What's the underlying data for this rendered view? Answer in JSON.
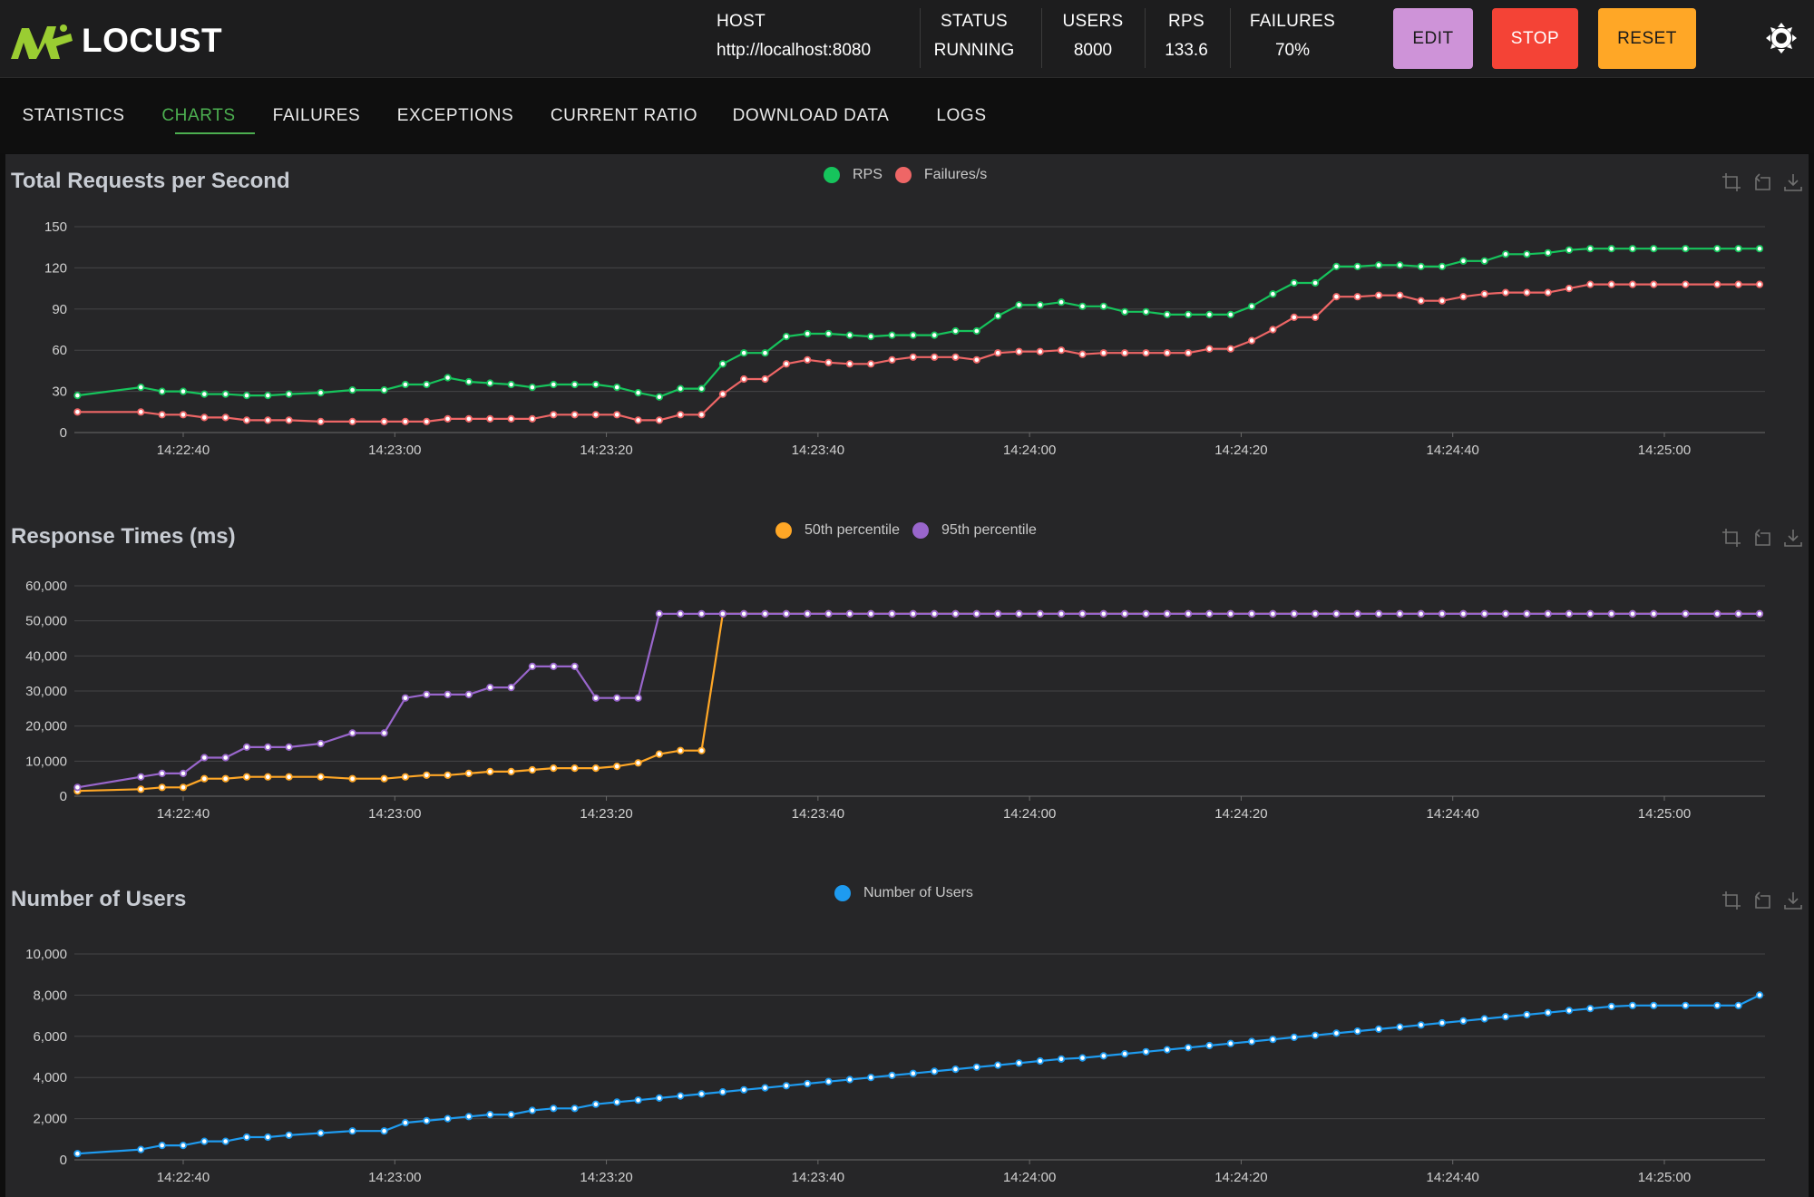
{
  "app": {
    "name": "LOCUST"
  },
  "header": {
    "stats": [
      {
        "label": "HOST",
        "value": "http://localhost:8080"
      },
      {
        "label": "STATUS",
        "value": "RUNNING"
      },
      {
        "label": "USERS",
        "value": "8000"
      },
      {
        "label": "RPS",
        "value": "133.6"
      },
      {
        "label": "FAILURES",
        "value": "70%"
      }
    ],
    "buttons": {
      "edit": "EDIT",
      "stop": "STOP",
      "reset": "RESET"
    },
    "colors": {
      "edit": "#ce93d8",
      "stop": "#f44336",
      "reset": "#ffa726"
    },
    "icons": {
      "logo": "locust-icon",
      "theme": "sun-icon"
    }
  },
  "tabs": [
    {
      "label": "STATISTICS",
      "active": false
    },
    {
      "label": "CHARTS",
      "active": true
    },
    {
      "label": "FAILURES",
      "active": false
    },
    {
      "label": "EXCEPTIONS",
      "active": false
    },
    {
      "label": "CURRENT RATIO",
      "active": false
    },
    {
      "label": "DOWNLOAD DATA",
      "active": false
    },
    {
      "label": "LOGS",
      "active": false
    }
  ],
  "toolbox_icons": [
    "zoom-icon",
    "zoom-reset-icon",
    "save-image-icon"
  ],
  "chart_data": [
    {
      "type": "line",
      "title": "Total Requests per Second",
      "legend_placement": "top-center",
      "grid": true,
      "x_ticks": [
        "14:22:40",
        "14:23:00",
        "14:23:20",
        "14:23:40",
        "14:24:00",
        "14:24:20",
        "14:24:40",
        "14:25:00"
      ],
      "x": [
        "14:22:30",
        "14:22:36",
        "14:22:38",
        "14:22:40",
        "14:22:42",
        "14:22:44",
        "14:22:46",
        "14:22:48",
        "14:22:50",
        "14:22:53",
        "14:22:56",
        "14:22:59",
        "14:23:01",
        "14:23:03",
        "14:23:05",
        "14:23:07",
        "14:23:09",
        "14:23:11",
        "14:23:13",
        "14:23:15",
        "14:23:17",
        "14:23:19",
        "14:23:21",
        "14:23:23",
        "14:23:25",
        "14:23:27",
        "14:23:29",
        "14:23:31",
        "14:23:33",
        "14:23:35",
        "14:23:37",
        "14:23:39",
        "14:23:41",
        "14:23:43",
        "14:23:45",
        "14:23:47",
        "14:23:49",
        "14:23:51",
        "14:23:53",
        "14:23:55",
        "14:23:57",
        "14:23:59",
        "14:24:01",
        "14:24:03",
        "14:24:05",
        "14:24:07",
        "14:24:09",
        "14:24:11",
        "14:24:13",
        "14:24:15",
        "14:24:17",
        "14:24:19",
        "14:24:21",
        "14:24:23",
        "14:24:25",
        "14:24:27",
        "14:24:29",
        "14:24:31",
        "14:24:33",
        "14:24:35",
        "14:24:37",
        "14:24:39",
        "14:24:41",
        "14:24:43",
        "14:24:45",
        "14:24:47",
        "14:24:49",
        "14:24:51",
        "14:24:53",
        "14:24:55",
        "14:24:57",
        "14:24:59",
        "14:25:02",
        "14:25:05",
        "14:25:07",
        "14:25:09"
      ],
      "series": [
        {
          "name": "RPS",
          "color": "#16c45c",
          "values": [
            27,
            33,
            30,
            30,
            28,
            28,
            27,
            27,
            28,
            29,
            31,
            31,
            35,
            35,
            40,
            37,
            36,
            35,
            33,
            35,
            35,
            35,
            33,
            29,
            26,
            32,
            32,
            50,
            58,
            58,
            70,
            72,
            72,
            71,
            70,
            71,
            71,
            71,
            74,
            74,
            85,
            93,
            93,
            95,
            92,
            92,
            88,
            88,
            86,
            86,
            86,
            86,
            92,
            101,
            109,
            109,
            121,
            121,
            122,
            122,
            121,
            121,
            125,
            125,
            130,
            130,
            131,
            133,
            134,
            134,
            134,
            134,
            134,
            134,
            134,
            134
          ]
        },
        {
          "name": "Failures/s",
          "color": "#ee6666",
          "values": [
            15,
            15,
            13,
            13,
            11,
            11,
            9,
            9,
            9,
            8,
            8,
            8,
            8,
            8,
            10,
            10,
            10,
            10,
            10,
            13,
            13,
            13,
            13,
            9,
            9,
            13,
            13,
            28,
            39,
            39,
            50,
            53,
            51,
            50,
            50,
            53,
            55,
            55,
            55,
            53,
            58,
            59,
            59,
            60,
            57,
            58,
            58,
            58,
            58,
            58,
            61,
            61,
            67,
            75,
            84,
            84,
            99,
            99,
            100,
            100,
            96,
            96,
            99,
            101,
            102,
            102,
            102,
            105,
            108,
            108,
            108,
            108,
            108,
            108,
            108,
            108
          ]
        }
      ],
      "ylim": [
        0,
        150
      ],
      "y_ticks": [
        "0",
        "30",
        "60",
        "90",
        "120",
        "150"
      ]
    },
    {
      "type": "line",
      "title": "Response Times (ms)",
      "legend_placement": "top-center",
      "grid": true,
      "x_ticks": [
        "14:22:40",
        "14:23:00",
        "14:23:20",
        "14:23:40",
        "14:24:00",
        "14:24:20",
        "14:24:40",
        "14:25:00"
      ],
      "x": [
        "14:22:30",
        "14:22:36",
        "14:22:38",
        "14:22:40",
        "14:22:42",
        "14:22:44",
        "14:22:46",
        "14:22:48",
        "14:22:50",
        "14:22:53",
        "14:22:56",
        "14:22:59",
        "14:23:01",
        "14:23:03",
        "14:23:05",
        "14:23:07",
        "14:23:09",
        "14:23:11",
        "14:23:13",
        "14:23:15",
        "14:23:17",
        "14:23:19",
        "14:23:21",
        "14:23:23",
        "14:23:25",
        "14:23:27",
        "14:23:29",
        "14:23:31",
        "14:23:33",
        "14:23:35",
        "14:23:37",
        "14:23:39",
        "14:23:41",
        "14:23:43",
        "14:23:45",
        "14:23:47",
        "14:23:49",
        "14:23:51",
        "14:23:53",
        "14:23:55",
        "14:23:57",
        "14:23:59",
        "14:24:01",
        "14:24:03",
        "14:24:05",
        "14:24:07",
        "14:24:09",
        "14:24:11",
        "14:24:13",
        "14:24:15",
        "14:24:17",
        "14:24:19",
        "14:24:21",
        "14:24:23",
        "14:24:25",
        "14:24:27",
        "14:24:29",
        "14:24:31",
        "14:24:33",
        "14:24:35",
        "14:24:37",
        "14:24:39",
        "14:24:41",
        "14:24:43",
        "14:24:45",
        "14:24:47",
        "14:24:49",
        "14:24:51",
        "14:24:53",
        "14:24:55",
        "14:24:57",
        "14:24:59",
        "14:25:02",
        "14:25:05",
        "14:25:07",
        "14:25:09"
      ],
      "series": [
        {
          "name": "50th percentile",
          "color": "#ffa726",
          "values": [
            1500,
            2000,
            2500,
            2500,
            5000,
            5000,
            5500,
            5500,
            5500,
            5500,
            5000,
            5000,
            5500,
            6000,
            6000,
            6500,
            7000,
            7000,
            7500,
            8000,
            8000,
            8000,
            8500,
            9500,
            12000,
            13000,
            13000,
            52000,
            52000,
            52000,
            52000,
            52000,
            52000,
            52000,
            52000,
            52000,
            52000,
            52000,
            52000,
            52000,
            52000,
            52000,
            52000,
            52000,
            52000,
            52000,
            52000,
            52000,
            52000,
            52000,
            52000,
            52000,
            52000,
            52000,
            52000,
            52000,
            52000,
            52000,
            52000,
            52000,
            52000,
            52000,
            52000,
            52000,
            52000,
            52000,
            52000,
            52000,
            52000,
            52000,
            52000,
            52000,
            52000,
            52000,
            52000,
            52000
          ]
        },
        {
          "name": "95th percentile",
          "color": "#9966cc",
          "values": [
            2500,
            5500,
            6500,
            6500,
            11000,
            11000,
            14000,
            14000,
            14000,
            15000,
            18000,
            18000,
            28000,
            29000,
            29000,
            29000,
            31000,
            31000,
            37000,
            37000,
            37000,
            28000,
            28000,
            28000,
            52000,
            52000,
            52000,
            52000,
            52000,
            52000,
            52000,
            52000,
            52000,
            52000,
            52000,
            52000,
            52000,
            52000,
            52000,
            52000,
            52000,
            52000,
            52000,
            52000,
            52000,
            52000,
            52000,
            52000,
            52000,
            52000,
            52000,
            52000,
            52000,
            52000,
            52000,
            52000,
            52000,
            52000,
            52000,
            52000,
            52000,
            52000,
            52000,
            52000,
            52000,
            52000,
            52000,
            52000,
            52000,
            52000,
            52000,
            52000,
            52000,
            52000,
            52000,
            52000
          ]
        }
      ],
      "ylim": [
        0,
        60000
      ],
      "y_ticks": [
        "0",
        "10,000",
        "20,000",
        "30,000",
        "40,000",
        "50,000",
        "60,000"
      ]
    },
    {
      "type": "line",
      "title": "Number of Users",
      "legend_placement": "top-center",
      "grid": true,
      "x_ticks": [
        "14:22:40",
        "14:23:00",
        "14:23:20",
        "14:23:40",
        "14:24:00",
        "14:24:20",
        "14:24:40",
        "14:25:00"
      ],
      "x": [
        "14:22:30",
        "14:22:36",
        "14:22:38",
        "14:22:40",
        "14:22:42",
        "14:22:44",
        "14:22:46",
        "14:22:48",
        "14:22:50",
        "14:22:53",
        "14:22:56",
        "14:22:59",
        "14:23:01",
        "14:23:03",
        "14:23:05",
        "14:23:07",
        "14:23:09",
        "14:23:11",
        "14:23:13",
        "14:23:15",
        "14:23:17",
        "14:23:19",
        "14:23:21",
        "14:23:23",
        "14:23:25",
        "14:23:27",
        "14:23:29",
        "14:23:31",
        "14:23:33",
        "14:23:35",
        "14:23:37",
        "14:23:39",
        "14:23:41",
        "14:23:43",
        "14:23:45",
        "14:23:47",
        "14:23:49",
        "14:23:51",
        "14:23:53",
        "14:23:55",
        "14:23:57",
        "14:23:59",
        "14:24:01",
        "14:24:03",
        "14:24:05",
        "14:24:07",
        "14:24:09",
        "14:24:11",
        "14:24:13",
        "14:24:15",
        "14:24:17",
        "14:24:19",
        "14:24:21",
        "14:24:23",
        "14:24:25",
        "14:24:27",
        "14:24:29",
        "14:24:31",
        "14:24:33",
        "14:24:35",
        "14:24:37",
        "14:24:39",
        "14:24:41",
        "14:24:43",
        "14:24:45",
        "14:24:47",
        "14:24:49",
        "14:24:51",
        "14:24:53",
        "14:24:55",
        "14:24:57",
        "14:24:59",
        "14:25:02",
        "14:25:05",
        "14:25:07",
        "14:25:09"
      ],
      "series": [
        {
          "name": "Number of Users",
          "color": "#1e9bf0",
          "values": [
            300,
            500,
            700,
            700,
            900,
            900,
            1100,
            1100,
            1200,
            1300,
            1400,
            1400,
            1800,
            1900,
            2000,
            2100,
            2200,
            2200,
            2400,
            2500,
            2500,
            2700,
            2800,
            2900,
            3000,
            3100,
            3200,
            3300,
            3400,
            3500,
            3600,
            3700,
            3800,
            3900,
            4000,
            4100,
            4200,
            4300,
            4400,
            4500,
            4600,
            4700,
            4800,
            4900,
            4950,
            5050,
            5150,
            5250,
            5350,
            5450,
            5550,
            5650,
            5750,
            5850,
            5950,
            6050,
            6150,
            6250,
            6350,
            6450,
            6550,
            6650,
            6750,
            6850,
            6950,
            7050,
            7150,
            7250,
            7350,
            7450,
            7500,
            7500,
            7500,
            7500,
            7500,
            8000
          ]
        }
      ],
      "ylim": [
        0,
        10000
      ],
      "y_ticks": [
        "0",
        "2,000",
        "4,000",
        "6,000",
        "8,000",
        "10,000"
      ]
    }
  ]
}
